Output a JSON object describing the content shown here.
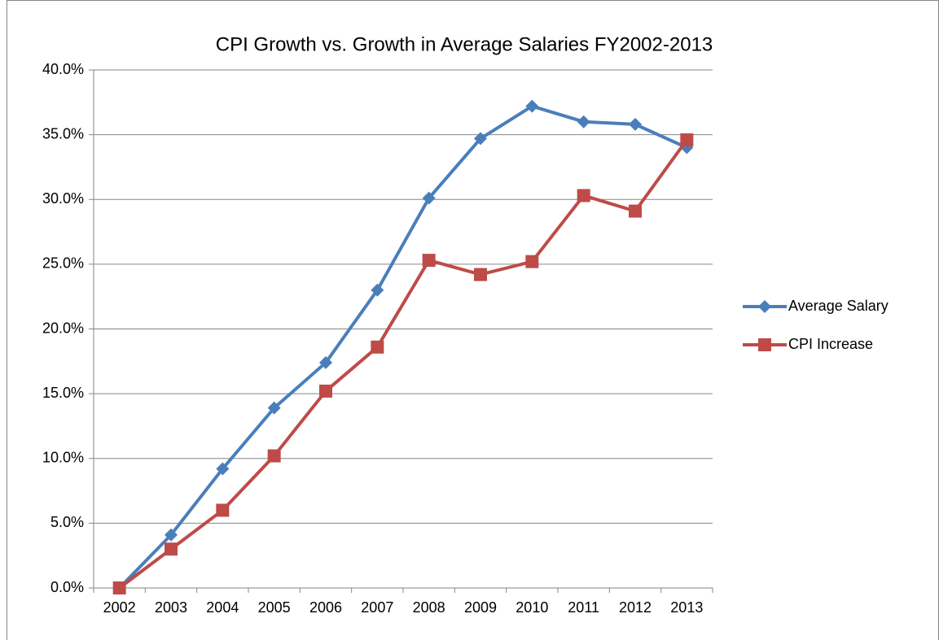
{
  "chart_data": {
    "type": "line",
    "title": "CPI Growth vs. Growth in Average Salaries FY2002-2013",
    "categories": [
      "2002",
      "2003",
      "2004",
      "2005",
      "2006",
      "2007",
      "2008",
      "2009",
      "2010",
      "2011",
      "2012",
      "2013"
    ],
    "series": [
      {
        "name": "Average Salary",
        "color": "#4a7ebb",
        "marker": "diamond",
        "values": [
          0,
          4.1,
          9.2,
          13.9,
          17.4,
          23.0,
          30.1,
          34.7,
          37.2,
          36.0,
          35.8,
          34.0
        ]
      },
      {
        "name": "CPI Increase",
        "color": "#be4b48",
        "marker": "square",
        "values": [
          0,
          3.0,
          6.0,
          10.2,
          15.2,
          18.6,
          25.3,
          24.2,
          25.2,
          30.3,
          29.1,
          34.6
        ]
      }
    ],
    "ylim": [
      0,
      40
    ],
    "yticks": [
      {
        "value": 0,
        "label": "0.0%"
      },
      {
        "value": 5,
        "label": "5.0%"
      },
      {
        "value": 10,
        "label": "10.0%"
      },
      {
        "value": 15,
        "label": "15.0%"
      },
      {
        "value": 20,
        "label": "20.0%"
      },
      {
        "value": 25,
        "label": "25.0%"
      },
      {
        "value": 30,
        "label": "30.0%"
      },
      {
        "value": 35,
        "label": "35.0%"
      },
      {
        "value": 40,
        "label": "40.0%"
      }
    ],
    "grid": true,
    "legend": "right"
  }
}
